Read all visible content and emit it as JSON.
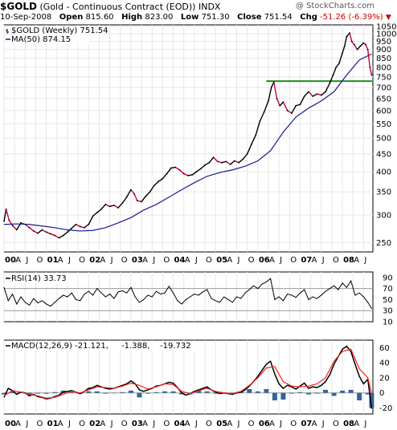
{
  "header": {
    "symbol": "$GOLD",
    "description": "(Gold - Continuous Contract (EOD))",
    "exchange": "INDX",
    "watermark": "@ StockCharts.com",
    "date": "10-Sep-2008",
    "open_label": "Open",
    "open": "815.60",
    "high_label": "High",
    "high": "823.00",
    "low_label": "Low",
    "low": "751.30",
    "close_label": "Close",
    "close": "751.54",
    "chg_label": "Chg",
    "chg": "-51.26 (-6.39%)",
    "chg_arrow": "▼"
  },
  "colors": {
    "price": "#000000",
    "price_down": "#cc0033",
    "ma": "#1a1a8c",
    "resistance": "#228b22",
    "rsi": "#000000",
    "macd": "#000000",
    "signal": "#ff2222",
    "histogram": "#336699",
    "grid": "#e6e6e6"
  },
  "chart_data": [
    {
      "type": "line",
      "panel": "price",
      "scale": "log",
      "legend": [
        {
          "label": "$GOLD (Weekly) 751.54",
          "icon": "price-bar-icon"
        },
        {
          "label": "MA(50) 874.15",
          "icon": "line-icon"
        }
      ],
      "ylim": [
        235,
        1060
      ],
      "yticks": [
        250,
        300,
        350,
        400,
        450,
        500,
        550,
        600,
        650,
        700,
        750,
        800,
        850,
        900,
        950,
        1000,
        1050
      ],
      "x_axis_labels": [
        "00",
        "A",
        "J",
        "O",
        "01",
        "A",
        "J",
        "O",
        "02",
        "A",
        "J",
        "O",
        "03",
        "A",
        "J",
        "O",
        "04",
        "A",
        "J",
        "O",
        "05",
        "A",
        "J",
        "O",
        "06",
        "A",
        "J",
        "O",
        "07",
        "A",
        "J",
        "O",
        "08",
        "A",
        "J"
      ],
      "horizontal_line": {
        "value": 730,
        "x_from": 2006.2,
        "x_to": 2008.7
      },
      "series": [
        {
          "name": "$GOLD (Weekly)",
          "x": [
            2000.0,
            2000.05,
            2000.12,
            2000.2,
            2000.3,
            2000.4,
            2000.5,
            2000.6,
            2000.7,
            2000.8,
            2000.9,
            2001.0,
            2001.1,
            2001.2,
            2001.3,
            2001.4,
            2001.5,
            2001.6,
            2001.7,
            2001.8,
            2001.9,
            2002.0,
            2002.1,
            2002.2,
            2002.3,
            2002.4,
            2002.5,
            2002.6,
            2002.7,
            2002.8,
            2002.9,
            2003.0,
            2003.08,
            2003.15,
            2003.25,
            2003.35,
            2003.45,
            2003.55,
            2003.65,
            2003.75,
            2003.85,
            2003.95,
            2004.05,
            2004.15,
            2004.25,
            2004.35,
            2004.45,
            2004.55,
            2004.65,
            2004.75,
            2004.85,
            2004.95,
            2005.05,
            2005.15,
            2005.25,
            2005.35,
            2005.45,
            2005.55,
            2005.65,
            2005.75,
            2005.85,
            2005.95,
            2006.05,
            2006.15,
            2006.25,
            2006.32,
            2006.38,
            2006.45,
            2006.52,
            2006.6,
            2006.7,
            2006.8,
            2006.9,
            2007.0,
            2007.1,
            2007.2,
            2007.3,
            2007.4,
            2007.5,
            2007.6,
            2007.7,
            2007.78,
            2007.85,
            2007.92,
            2008.0,
            2008.05,
            2008.1,
            2008.17,
            2008.22,
            2008.28,
            2008.35,
            2008.42,
            2008.5,
            2008.55,
            2008.6,
            2008.65,
            2008.69
          ],
          "values": [
            288,
            312,
            290,
            280,
            272,
            285,
            282,
            276,
            270,
            266,
            272,
            268,
            265,
            262,
            258,
            262,
            268,
            275,
            282,
            278,
            276,
            282,
            298,
            305,
            312,
            322,
            318,
            320,
            315,
            325,
            338,
            355,
            345,
            330,
            328,
            340,
            350,
            365,
            375,
            382,
            395,
            410,
            412,
            405,
            395,
            390,
            392,
            400,
            408,
            418,
            425,
            440,
            428,
            425,
            428,
            420,
            430,
            425,
            435,
            450,
            480,
            510,
            560,
            595,
            640,
            700,
            725,
            650,
            620,
            635,
            600,
            590,
            620,
            625,
            660,
            680,
            660,
            670,
            665,
            680,
            720,
            760,
            800,
            820,
            880,
            920,
            980,
            1005,
            950,
            930,
            900,
            920,
            940,
            930,
            900,
            800,
            760
          ]
        },
        {
          "name": "MA(50)",
          "x": [
            2000.0,
            2000.3,
            2000.6,
            2000.9,
            2001.2,
            2001.5,
            2001.8,
            2002.1,
            2002.4,
            2002.7,
            2003.0,
            2003.3,
            2003.6,
            2003.9,
            2004.2,
            2004.5,
            2004.8,
            2005.1,
            2005.4,
            2005.7,
            2006.0,
            2006.3,
            2006.6,
            2006.9,
            2007.2,
            2007.5,
            2007.8,
            2008.1,
            2008.4,
            2008.69
          ],
          "values": [
            282,
            283,
            282,
            279,
            276,
            272,
            270,
            271,
            276,
            285,
            295,
            310,
            322,
            338,
            355,
            372,
            388,
            398,
            405,
            415,
            430,
            460,
            520,
            575,
            610,
            640,
            680,
            760,
            840,
            874
          ]
        }
      ]
    },
    {
      "type": "line",
      "panel": "rsi",
      "legend": [
        {
          "label": "RSI(14) 33.73",
          "icon": "line-icon"
        }
      ],
      "ylim": [
        10,
        100
      ],
      "yticks": [
        10,
        30,
        50,
        70,
        90
      ],
      "reference_lines": [
        30,
        70
      ],
      "series": [
        {
          "name": "RSI(14)",
          "x": [
            2000.0,
            2000.1,
            2000.2,
            2000.3,
            2000.4,
            2000.5,
            2000.6,
            2000.7,
            2000.8,
            2000.9,
            2001.0,
            2001.1,
            2001.2,
            2001.3,
            2001.4,
            2001.5,
            2001.6,
            2001.7,
            2001.8,
            2001.9,
            2002.0,
            2002.1,
            2002.2,
            2002.3,
            2002.4,
            2002.5,
            2002.6,
            2002.7,
            2002.8,
            2002.9,
            2003.0,
            2003.1,
            2003.2,
            2003.3,
            2003.4,
            2003.5,
            2003.6,
            2003.7,
            2003.8,
            2003.9,
            2004.0,
            2004.1,
            2004.2,
            2004.3,
            2004.4,
            2004.5,
            2004.6,
            2004.7,
            2004.8,
            2004.9,
            2005.0,
            2005.1,
            2005.2,
            2005.3,
            2005.4,
            2005.5,
            2005.6,
            2005.7,
            2005.8,
            2005.9,
            2006.0,
            2006.1,
            2006.2,
            2006.3,
            2006.4,
            2006.5,
            2006.6,
            2006.7,
            2006.8,
            2006.9,
            2007.0,
            2007.1,
            2007.2,
            2007.3,
            2007.4,
            2007.5,
            2007.6,
            2007.7,
            2007.8,
            2007.9,
            2008.0,
            2008.1,
            2008.2,
            2008.3,
            2008.4,
            2008.5,
            2008.6,
            2008.69
          ],
          "values": [
            72,
            48,
            60,
            42,
            55,
            45,
            40,
            52,
            44,
            48,
            42,
            38,
            45,
            52,
            58,
            55,
            62,
            50,
            48,
            60,
            65,
            58,
            70,
            62,
            55,
            60,
            52,
            64,
            66,
            62,
            72,
            55,
            45,
            50,
            58,
            55,
            65,
            60,
            62,
            74,
            62,
            48,
            42,
            50,
            55,
            60,
            58,
            64,
            68,
            52,
            48,
            45,
            55,
            50,
            45,
            55,
            52,
            62,
            68,
            75,
            70,
            78,
            82,
            88,
            50,
            55,
            48,
            60,
            58,
            54,
            62,
            68,
            50,
            55,
            52,
            58,
            65,
            70,
            75,
            68,
            80,
            72,
            84,
            58,
            62,
            55,
            45,
            34
          ]
        }
      ]
    },
    {
      "type": "line",
      "panel": "macd",
      "legend": [
        {
          "label": "MACD(12,26,9)",
          "value": "-21.121",
          "color": "#000000"
        },
        {
          "label": "",
          "value": "-1.388",
          "color": "#ff2222"
        },
        {
          "label": "",
          "value": "-19.732",
          "color": "#336699"
        }
      ],
      "ylim": [
        -28,
        70
      ],
      "yticks": [
        -20,
        0,
        20,
        40,
        60
      ],
      "x_axis_labels": [
        "00",
        "A",
        "J",
        "O",
        "01",
        "A",
        "J",
        "O",
        "02",
        "A",
        "J",
        "O",
        "03",
        "A",
        "J",
        "O",
        "04",
        "A",
        "J",
        "O",
        "05",
        "A",
        "J",
        "O",
        "06",
        "A",
        "J",
        "O",
        "07",
        "A",
        "J",
        "O",
        "08",
        "A",
        "J"
      ],
      "series": [
        {
          "name": "MACD(12,26,9)",
          "x": [
            2000.0,
            2000.1,
            2000.2,
            2000.3,
            2000.4,
            2000.5,
            2000.6,
            2000.7,
            2000.8,
            2000.9,
            2001.0,
            2001.1,
            2001.2,
            2001.3,
            2001.4,
            2001.5,
            2001.6,
            2001.7,
            2001.8,
            2001.9,
            2002.0,
            2002.1,
            2002.2,
            2002.3,
            2002.4,
            2002.5,
            2002.6,
            2002.7,
            2002.8,
            2002.9,
            2003.0,
            2003.1,
            2003.2,
            2003.3,
            2003.4,
            2003.5,
            2003.6,
            2003.7,
            2003.8,
            2003.9,
            2004.0,
            2004.1,
            2004.2,
            2004.3,
            2004.4,
            2004.5,
            2004.6,
            2004.7,
            2004.8,
            2004.9,
            2005.0,
            2005.1,
            2005.2,
            2005.3,
            2005.4,
            2005.5,
            2005.6,
            2005.7,
            2005.8,
            2005.9,
            2006.0,
            2006.1,
            2006.2,
            2006.3,
            2006.4,
            2006.5,
            2006.6,
            2006.7,
            2006.8,
            2006.9,
            2007.0,
            2007.1,
            2007.2,
            2007.3,
            2007.4,
            2007.5,
            2007.6,
            2007.7,
            2007.8,
            2007.9,
            2008.0,
            2008.1,
            2008.2,
            2008.3,
            2008.4,
            2008.5,
            2008.6,
            2008.69
          ],
          "values": [
            -6,
            6,
            3,
            -2,
            1,
            0,
            -4,
            -2,
            -5,
            -6,
            -8,
            -7,
            -5,
            -3,
            1,
            2,
            3,
            1,
            -1,
            2,
            6,
            7,
            10,
            8,
            6,
            5,
            6,
            8,
            10,
            12,
            16,
            12,
            4,
            2,
            4,
            6,
            9,
            10,
            12,
            14,
            13,
            7,
            0,
            -3,
            -1,
            2,
            4,
            6,
            8,
            4,
            1,
            -1,
            0,
            -1,
            -2,
            0,
            1,
            4,
            9,
            15,
            22,
            30,
            38,
            42,
            25,
            12,
            6,
            10,
            8,
            5,
            9,
            13,
            6,
            8,
            7,
            10,
            15,
            24,
            38,
            48,
            58,
            62,
            55,
            38,
            22,
            12,
            18,
            -21
          ]
        },
        {
          "name": "signal",
          "x": [
            2000.0,
            2000.2,
            2000.4,
            2000.6,
            2000.8,
            2001.0,
            2001.2,
            2001.4,
            2001.6,
            2001.8,
            2002.0,
            2002.2,
            2002.4,
            2002.6,
            2002.8,
            2003.0,
            2003.2,
            2003.4,
            2003.6,
            2003.8,
            2004.0,
            2004.2,
            2004.4,
            2004.6,
            2004.8,
            2005.0,
            2005.2,
            2005.4,
            2005.6,
            2005.8,
            2006.0,
            2006.2,
            2006.4,
            2006.6,
            2006.8,
            2007.0,
            2007.2,
            2007.4,
            2007.6,
            2007.8,
            2008.0,
            2008.2,
            2008.4,
            2008.6,
            2008.69
          ],
          "values": [
            -4,
            3,
            1,
            -2,
            -4,
            -7,
            -6,
            -2,
            2,
            0,
            4,
            8,
            7,
            6,
            9,
            13,
            10,
            5,
            8,
            12,
            11,
            2,
            -1,
            3,
            6,
            2,
            0,
            -1,
            2,
            10,
            20,
            33,
            35,
            15,
            9,
            8,
            9,
            12,
            20,
            42,
            55,
            58,
            32,
            20,
            -1
          ]
        },
        {
          "name": "histogram",
          "x": [
            2000.0,
            2000.2,
            2000.4,
            2000.6,
            2000.8,
            2001.0,
            2001.2,
            2001.4,
            2001.6,
            2001.8,
            2002.0,
            2002.2,
            2002.4,
            2002.6,
            2002.8,
            2003.0,
            2003.2,
            2003.4,
            2003.6,
            2003.8,
            2004.0,
            2004.2,
            2004.4,
            2004.6,
            2004.8,
            2005.0,
            2005.2,
            2005.4,
            2005.6,
            2005.8,
            2006.0,
            2006.2,
            2006.4,
            2006.6,
            2006.8,
            2007.0,
            2007.2,
            2007.4,
            2007.6,
            2007.8,
            2008.0,
            2008.2,
            2008.4,
            2008.6,
            2008.69
          ],
          "values": [
            -2,
            2,
            1,
            -2,
            -1,
            -1,
            1,
            3,
            1,
            -1,
            2,
            2,
            -1,
            0,
            1,
            3,
            -6,
            -1,
            1,
            2,
            2,
            -2,
            -2,
            3,
            2,
            -1,
            0,
            -1,
            2,
            5,
            2,
            5,
            -10,
            -9,
            -1,
            1,
            -2,
            -1,
            4,
            -4,
            3,
            4,
            -10,
            -2,
            -20
          ]
        }
      ]
    }
  ]
}
